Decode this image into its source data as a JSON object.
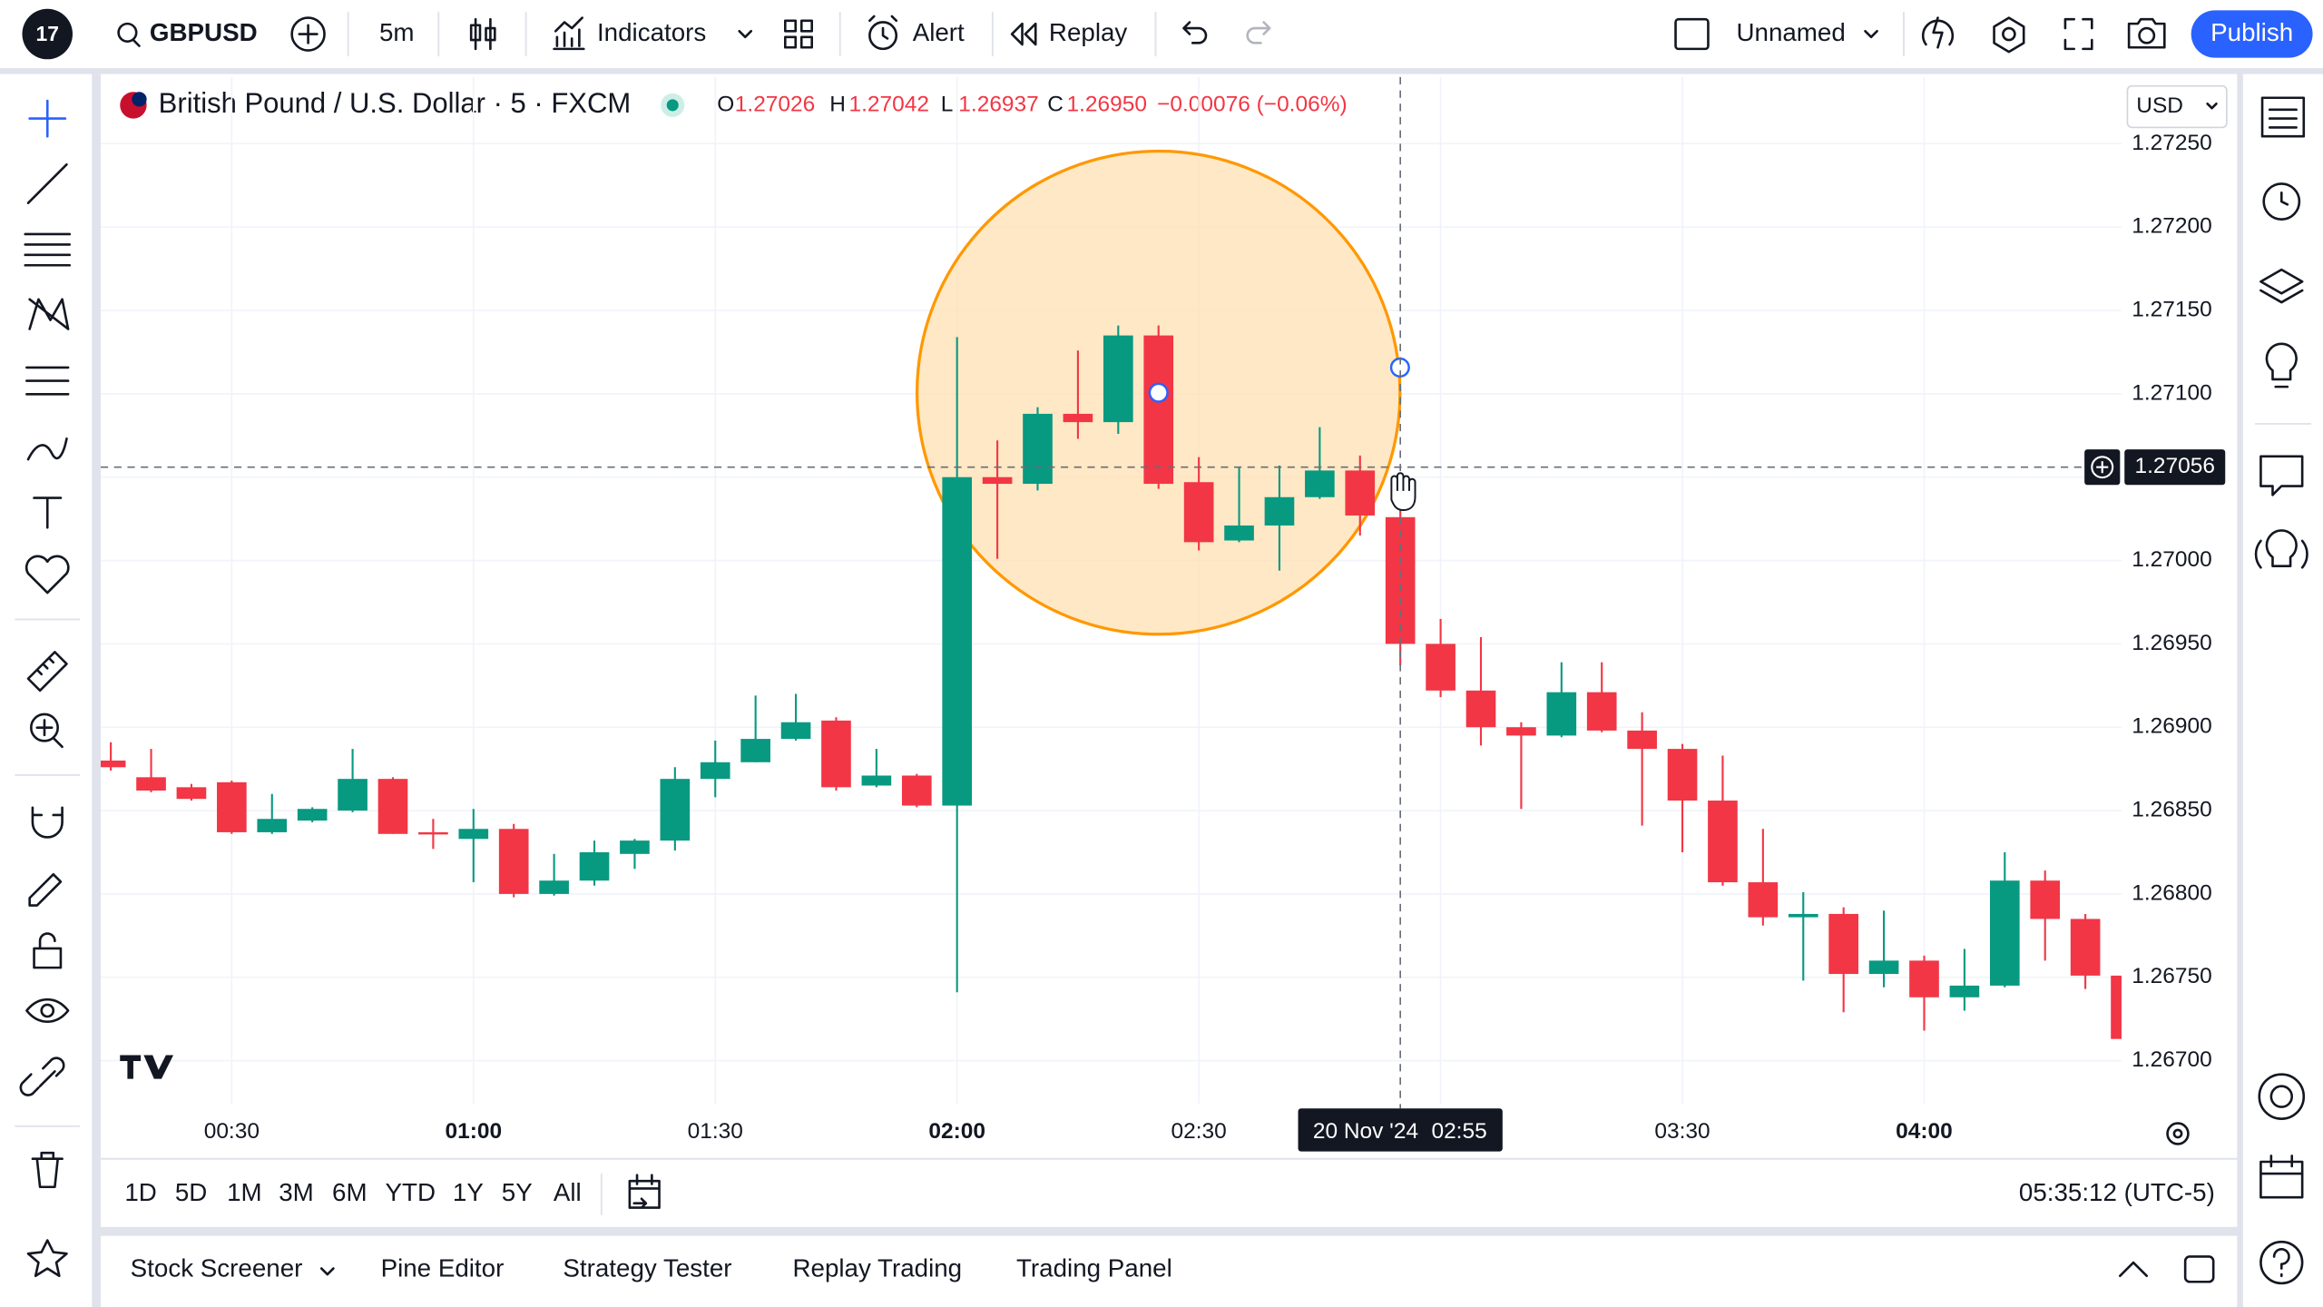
{
  "toolbar": {
    "symbol": "GBPUSD",
    "interval": "5m",
    "indicators": "Indicators",
    "alert": "Alert",
    "replay": "Replay",
    "layout_name": "Unnamed",
    "publish": "Publish"
  },
  "legend": {
    "symbol": "British Pound / U.S. Dollar · 5 · FXCM",
    "open_key": "O",
    "open": "1.27026",
    "high_key": "H",
    "high": "1.27042",
    "low_key": "L",
    "low": "1.26937",
    "close_key": "C",
    "close": "1.26950",
    "change": "−0.00076 (−0.06%)"
  },
  "currency": "USD",
  "chart_data": {
    "type": "candlestick",
    "categories": [
      null,
      null,
      null,
      "00:30",
      null,
      null,
      null,
      null,
      null,
      "01:00",
      null,
      null,
      null,
      null,
      null,
      "01:30",
      null,
      null,
      null,
      null,
      null,
      "02:00",
      null,
      null,
      null,
      null,
      null,
      "02:30",
      null,
      null,
      null,
      null,
      null,
      null,
      null,
      null,
      null,
      null,
      null,
      "03:30",
      null,
      null,
      null,
      null,
      null,
      "04:00",
      null,
      null,
      null,
      null,
      null
    ],
    "open": [
      1.2688,
      1.2687,
      1.26864,
      1.26867,
      1.26837,
      1.26844,
      1.2685,
      1.26869,
      1.26837,
      1.26833,
      1.26839,
      1.268,
      1.26808,
      1.26824,
      1.26832,
      1.26869,
      1.26879,
      1.26893,
      1.26904,
      1.26865,
      1.26871,
      1.26853,
      1.2705,
      1.27046,
      1.27088,
      1.27083,
      1.27135,
      1.27047,
      1.27012,
      1.27021,
      1.27038,
      1.27054,
      1.27026,
      1.2695,
      1.26922,
      1.269,
      1.26895,
      1.26921,
      1.26898,
      1.26887,
      1.26856,
      1.26807,
      1.26786,
      1.26788,
      1.26752,
      1.2676,
      1.26738,
      1.26745,
      1.26808,
      1.26785,
      1.26751
    ],
    "high": [
      1.26891,
      1.26887,
      1.26866,
      1.26868,
      1.2686,
      1.26852,
      1.26887,
      1.2687,
      1.26845,
      1.26851,
      1.26842,
      1.26824,
      1.26832,
      1.26833,
      1.26876,
      1.26892,
      1.26919,
      1.2692,
      1.26906,
      1.26887,
      1.26872,
      1.27134,
      1.27072,
      1.27092,
      1.27126,
      1.27141,
      1.27141,
      1.27062,
      1.27056,
      1.27057,
      1.2708,
      1.27063,
      1.27042,
      1.26965,
      1.26954,
      1.26903,
      1.26939,
      1.26939,
      1.26909,
      1.2689,
      1.26883,
      1.26839,
      1.26801,
      1.26792,
      1.2679,
      1.26763,
      1.26767,
      1.26825,
      1.26814,
      1.26788,
      1.26752
    ],
    "low": [
      1.26874,
      1.26861,
      1.26856,
      1.26836,
      1.26836,
      1.26843,
      1.26849,
      1.26836,
      1.26827,
      1.26807,
      1.26798,
      1.26799,
      1.26805,
      1.26815,
      1.26826,
      1.26858,
      1.26879,
      1.26892,
      1.26862,
      1.26864,
      1.26852,
      1.26741,
      1.27001,
      1.27042,
      1.27073,
      1.27076,
      1.27043,
      1.27006,
      1.27011,
      1.26994,
      1.27037,
      1.27015,
      1.26937,
      1.26918,
      1.26889,
      1.26851,
      1.26894,
      1.26897,
      1.26841,
      1.26825,
      1.26805,
      1.26781,
      1.26748,
      1.26729,
      1.26744,
      1.26718,
      1.2673,
      1.26744,
      1.2676,
      1.26743,
      1.26712
    ],
    "close": [
      1.26876,
      1.26862,
      1.26857,
      1.26837,
      1.26845,
      1.26851,
      1.26869,
      1.26836,
      1.26836,
      1.26839,
      1.268,
      1.26808,
      1.26825,
      1.26832,
      1.26869,
      1.26879,
      1.26893,
      1.26903,
      1.26864,
      1.26871,
      1.26853,
      1.2705,
      1.27046,
      1.27088,
      1.27083,
      1.27135,
      1.27046,
      1.27011,
      1.27021,
      1.27038,
      1.27054,
      1.27027,
      1.2695,
      1.26922,
      1.269,
      1.26895,
      1.26921,
      1.26898,
      1.26887,
      1.26856,
      1.26807,
      1.26786,
      1.26788,
      1.26752,
      1.2676,
      1.26738,
      1.26745,
      1.26808,
      1.26785,
      1.26751,
      1.26713
    ],
    "up_color": "#089981",
    "down_color": "#f23645",
    "ylim": [
      1.26674,
      1.2729
    ],
    "yticks": [
      {
        "value": 1.2725,
        "label": "1.27250"
      },
      {
        "value": 1.272,
        "label": "1.27200"
      },
      {
        "value": 1.2715,
        "label": "1.27150"
      },
      {
        "value": 1.271,
        "label": "1.27100"
      },
      {
        "value": 1.2705,
        "label": "1.27050"
      },
      {
        "value": 1.27,
        "label": "1.27000"
      },
      {
        "value": 1.2695,
        "label": "1.26950"
      },
      {
        "value": 1.269,
        "label": "1.26900"
      },
      {
        "value": 1.2685,
        "label": "1.26850"
      },
      {
        "value": 1.268,
        "label": "1.26800"
      },
      {
        "value": 1.2675,
        "label": "1.26750"
      },
      {
        "value": 1.267,
        "label": "1.26700"
      }
    ],
    "grid": true,
    "crosshair": {
      "index": 32,
      "date": "20 Nov '24",
      "time": "02:55",
      "price": 1.27056
    }
  },
  "ranges": [
    "1D",
    "5D",
    "1M",
    "3M",
    "6M",
    "YTD",
    "1Y",
    "5Y",
    "All"
  ],
  "clock": "05:35:12 (UTC-5)",
  "bottom_tabs": [
    "Stock Screener",
    "Pine Editor",
    "Strategy Tester",
    "Replay Trading",
    "Trading Panel"
  ]
}
